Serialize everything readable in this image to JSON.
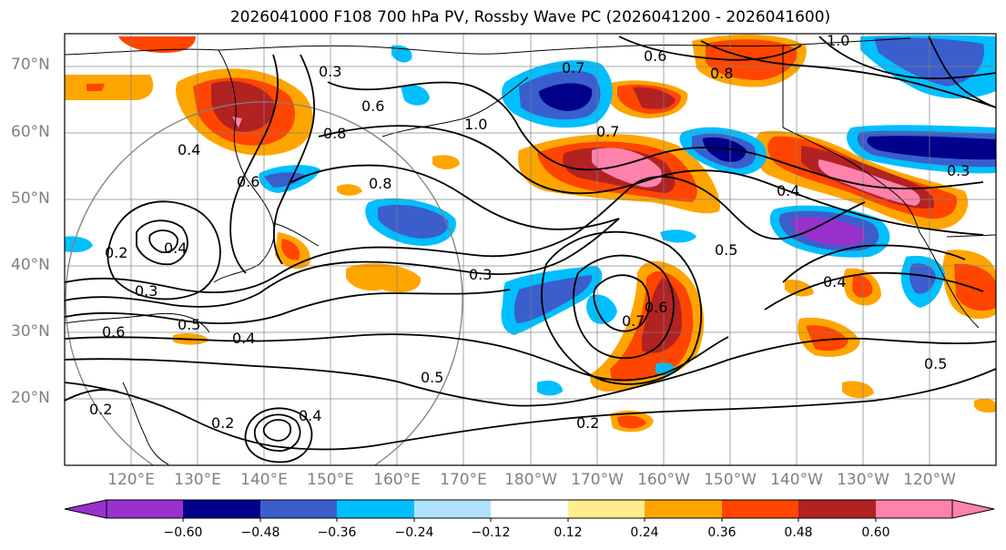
{
  "title": "2026041000 F108 700 hPa PV, Rossby Wave PC (2026041200 - 2026041600)",
  "latitudes": [
    "70°N",
    "60°N",
    "50°N",
    "40°N",
    "30°N",
    "20°N"
  ],
  "longitudes": [
    "120°E",
    "130°E",
    "140°E",
    "150°E",
    "160°E",
    "170°E",
    "180°W",
    "170°W",
    "160°W",
    "150°W",
    "140°W",
    "130°W",
    "120°W"
  ],
  "colorbar": {
    "ticks": [
      "−0.60",
      "−0.48",
      "−0.36",
      "−0.24",
      "−0.12",
      "0.12",
      "0.24",
      "0.36",
      "0.48",
      "0.60"
    ],
    "colors": [
      "#9932cc",
      "#00008b",
      "#3a5fcd",
      "#00bfff",
      "#b0e2ff",
      "#ffffff",
      "#ffec8b",
      "#ffa500",
      "#ff4500",
      "#b22222",
      "#ff82ab"
    ]
  },
  "contour_labels": [
    "0.3",
    "0.6",
    "0.8",
    "1.0",
    "0.7",
    "0.6",
    "0.8",
    "0.7",
    "0.4",
    "0.6",
    "0.2",
    "0.4",
    "0.3",
    "0.5",
    "0.6",
    "0.4",
    "0.8",
    "0.3",
    "0.5",
    "0.7",
    "0.6",
    "0.5",
    "0.2",
    "0.4",
    "0.5",
    "0.3",
    "0.2",
    "0.2",
    "0.4",
    "1.0",
    "0.4"
  ]
}
